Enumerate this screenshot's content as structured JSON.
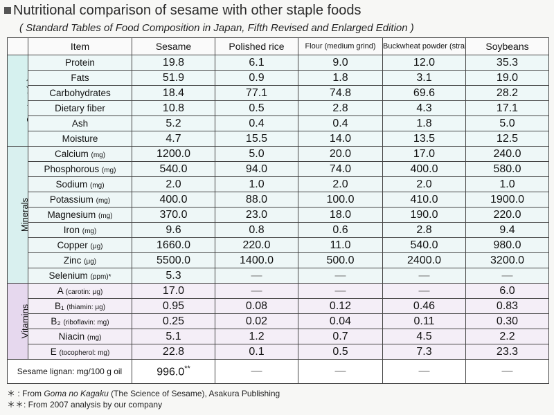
{
  "title": "Nutritional comparison of sesame with other staple foods",
  "subtitle": "( Standard Tables of Food Composition in Japan, Fifth Revised and Enlarged Edition )",
  "columns": {
    "item": "Item",
    "sesame": "Sesame",
    "rice": "Polished rice",
    "flour": "Flour (medium grind)",
    "buckwheat": "Buckwheat powder (straight)",
    "soy": "Soybeans"
  },
  "groups": {
    "content": "Content (g)",
    "minerals": "Minerals",
    "vitamins": "Vitamins"
  },
  "rows": [
    {
      "label": "Protein",
      "unit": "",
      "v": [
        "19.8",
        "6.1",
        "9.0",
        "12.0",
        "35.3"
      ]
    },
    {
      "label": "Fats",
      "unit": "",
      "v": [
        "51.9",
        "0.9",
        "1.8",
        "3.1",
        "19.0"
      ]
    },
    {
      "label": "Carbohydrates",
      "unit": "",
      "v": [
        "18.4",
        "77.1",
        "74.8",
        "69.6",
        "28.2"
      ]
    },
    {
      "label": "Dietary fiber",
      "unit": "",
      "v": [
        "10.8",
        "0.5",
        "2.8",
        "4.3",
        "17.1"
      ]
    },
    {
      "label": "Ash",
      "unit": "",
      "v": [
        "5.2",
        "0.4",
        "0.4",
        "1.8",
        "5.0"
      ]
    },
    {
      "label": "Moisture",
      "unit": "",
      "v": [
        "4.7",
        "15.5",
        "14.0",
        "13.5",
        "12.5"
      ]
    },
    {
      "label": "Calcium",
      "unit": "(mg)",
      "v": [
        "1200.0",
        "5.0",
        "20.0",
        "17.0",
        "240.0"
      ]
    },
    {
      "label": "Phosphorous",
      "unit": "(mg)",
      "v": [
        "540.0",
        "94.0",
        "74.0",
        "400.0",
        "580.0"
      ]
    },
    {
      "label": "Sodium",
      "unit": "(mg)",
      "v": [
        "2.0",
        "1.0",
        "2.0",
        "2.0",
        "1.0"
      ]
    },
    {
      "label": "Potassium",
      "unit": "(mg)",
      "v": [
        "400.0",
        "88.0",
        "100.0",
        "410.0",
        "1900.0"
      ]
    },
    {
      "label": "Magnesium",
      "unit": "(mg)",
      "v": [
        "370.0",
        "23.0",
        "18.0",
        "190.0",
        "220.0"
      ]
    },
    {
      "label": "Iron",
      "unit": "(mg)",
      "v": [
        "9.6",
        "0.8",
        "0.6",
        "2.8",
        "9.4"
      ]
    },
    {
      "label": "Copper",
      "unit": "(μg)",
      "v": [
        "1660.0",
        "220.0",
        "11.0",
        "540.0",
        "980.0"
      ]
    },
    {
      "label": "Zinc",
      "unit": "(μg)",
      "v": [
        "5500.0",
        "1400.0",
        "500.0",
        "2400.0",
        "3200.0"
      ]
    },
    {
      "label": "Selenium",
      "unit": "(ppm)*",
      "v": [
        "5.3",
        "—",
        "—",
        "—",
        "—"
      ]
    },
    {
      "label": "A",
      "unit": "(carotin: μg)",
      "v": [
        "17.0",
        "—",
        "—",
        "—",
        "6.0"
      ]
    },
    {
      "label": "B₁",
      "unit": "(thiamin: μg)",
      "v": [
        "0.95",
        "0.08",
        "0.12",
        "0.46",
        "0.83"
      ]
    },
    {
      "label": "B₂",
      "unit": "(riboflavin: mg)",
      "v": [
        "0.25",
        "0.02",
        "0.04",
        "0.11",
        "0.30"
      ]
    },
    {
      "label": "Niacin",
      "unit": "(mg)",
      "v": [
        "5.1",
        "1.2",
        "0.7",
        "4.5",
        "2.2"
      ]
    },
    {
      "label": "E",
      "unit": "(tocopherol: mg)",
      "v": [
        "22.8",
        "0.1",
        "0.5",
        "7.3",
        "23.3"
      ]
    }
  ],
  "lignan": {
    "label": "Sesame lignan: mg/100 g oil",
    "sesame": "996.0",
    "mark": "**",
    "others": [
      "—",
      "—",
      "—",
      "—"
    ]
  },
  "notes": {
    "n1_mark": "＊ : From",
    "n1_book": "Goma no Kagaku",
    "n1_rest": "(The Science of Sesame), Asakura Publishing",
    "n2": "＊＊: From 2007 analysis by our company"
  }
}
